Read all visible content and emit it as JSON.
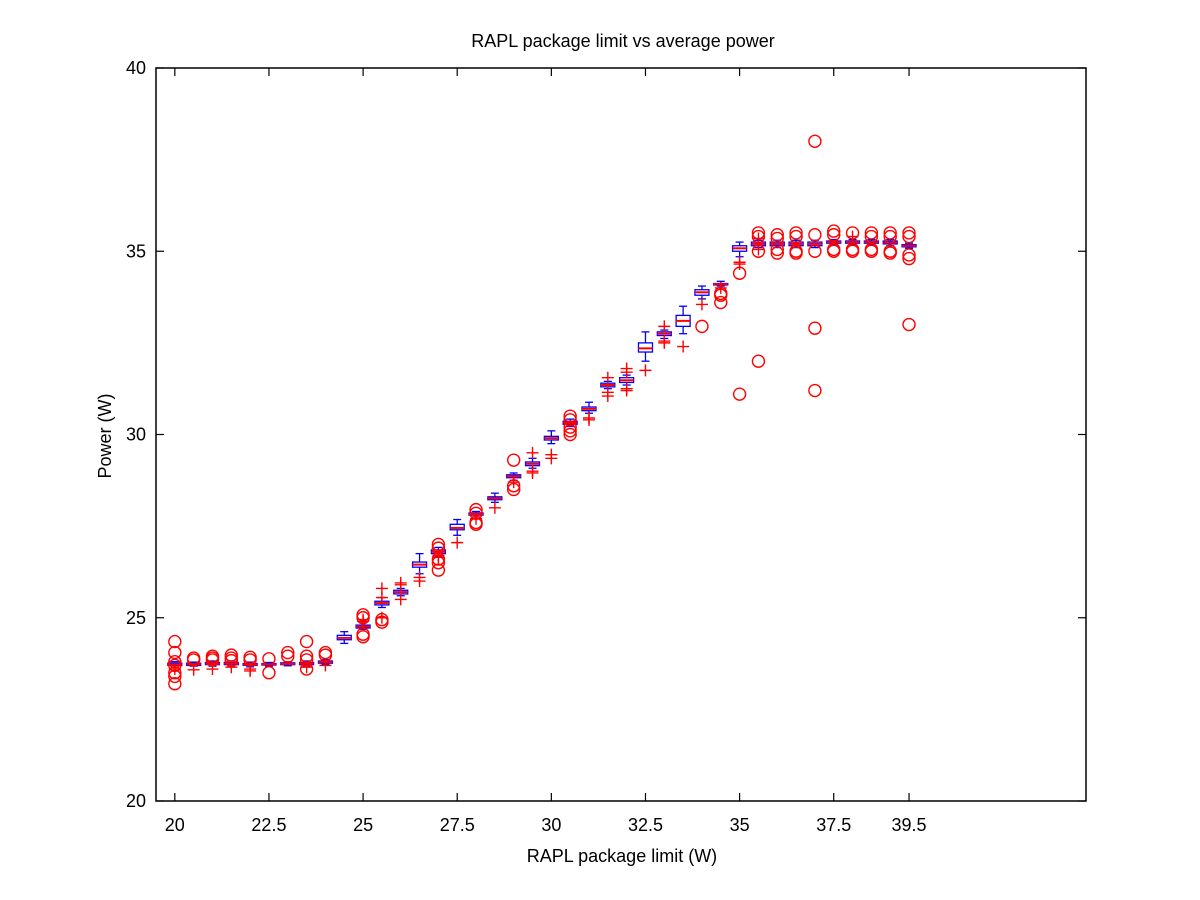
{
  "chart_data": {
    "type": "box",
    "title": "RAPL package limit vs average power",
    "xlabel": "RAPL package limit (W)",
    "ylabel": "Power (W)",
    "xlim": [
      19.5,
      44.2
    ],
    "ylim": [
      20,
      40
    ],
    "xticks": [
      20,
      22.5,
      25,
      27.5,
      30,
      32.5,
      35,
      37.5,
      39.5
    ],
    "xtick_labels": [
      "20",
      "22.5",
      "25",
      "27.5",
      "30",
      "32.5",
      "35",
      "37.5",
      "39.5"
    ],
    "yticks": [
      20,
      25,
      30,
      35,
      40
    ],
    "ytick_labels": [
      "20",
      "25",
      "30",
      "35",
      "40"
    ],
    "grid": false,
    "colors": {
      "box": "#0000ff",
      "outlier": "#ff0000",
      "axis": "#000000"
    },
    "boxes": [
      {
        "x": 20.0,
        "q1": 23.7,
        "median": 23.72,
        "q3": 23.76,
        "wlo": 23.65,
        "whi": 23.8,
        "plus": [
          23.6
        ],
        "circles": [
          24.35,
          24.05,
          23.8,
          23.7,
          23.5,
          23.4,
          23.2
        ]
      },
      {
        "x": 20.5,
        "q1": 23.7,
        "median": 23.73,
        "q3": 23.76,
        "wlo": 23.68,
        "whi": 23.79,
        "plus": [
          23.58
        ],
        "circles": [
          23.9,
          23.85
        ]
      },
      {
        "x": 21.0,
        "q1": 23.72,
        "median": 23.74,
        "q3": 23.78,
        "wlo": 23.68,
        "whi": 23.82,
        "plus": [
          23.6
        ],
        "circles": [
          23.95,
          23.9,
          23.85
        ]
      },
      {
        "x": 21.5,
        "q1": 23.72,
        "median": 23.75,
        "q3": 23.78,
        "wlo": 23.68,
        "whi": 23.82,
        "plus": [
          23.65
        ],
        "circles": [
          23.98,
          23.9,
          23.83
        ]
      },
      {
        "x": 22.0,
        "q1": 23.7,
        "median": 23.72,
        "q3": 23.75,
        "wlo": 23.66,
        "whi": 23.79,
        "plus": [
          23.6,
          23.55
        ],
        "circles": [
          23.92,
          23.85
        ]
      },
      {
        "x": 22.5,
        "q1": 23.71,
        "median": 23.73,
        "q3": 23.75,
        "wlo": 23.68,
        "whi": 23.78,
        "plus": [],
        "circles": [
          23.88,
          23.5
        ]
      },
      {
        "x": 23.0,
        "q1": 23.72,
        "median": 23.74,
        "q3": 23.77,
        "wlo": 23.69,
        "whi": 23.8,
        "plus": [],
        "circles": [
          24.05,
          23.95
        ]
      },
      {
        "x": 23.5,
        "q1": 23.72,
        "median": 23.75,
        "q3": 23.78,
        "wlo": 23.68,
        "whi": 23.82,
        "plus": [
          23.65
        ],
        "circles": [
          24.35,
          23.95,
          23.85,
          23.6
        ]
      },
      {
        "x": 24.0,
        "q1": 23.76,
        "median": 23.79,
        "q3": 23.82,
        "wlo": 23.73,
        "whi": 23.86,
        "plus": [
          23.7
        ],
        "circles": [
          24.05,
          23.98
        ]
      },
      {
        "x": 24.5,
        "q1": 24.4,
        "median": 24.45,
        "q3": 24.52,
        "wlo": 24.3,
        "whi": 24.62,
        "plus": [],
        "circles": []
      },
      {
        "x": 25.0,
        "q1": 24.72,
        "median": 24.76,
        "q3": 24.8,
        "wlo": 24.68,
        "whi": 24.86,
        "plus": [
          24.95,
          24.9
        ],
        "circles": [
          25.08,
          25.0,
          24.55,
          24.48
        ]
      },
      {
        "x": 25.5,
        "q1": 25.35,
        "median": 25.4,
        "q3": 25.45,
        "wlo": 25.28,
        "whi": 25.55,
        "plus": [
          25.8,
          25.55,
          25.0
        ],
        "circles": [
          24.95,
          24.88
        ]
      },
      {
        "x": 26.0,
        "q1": 25.65,
        "median": 25.7,
        "q3": 25.75,
        "wlo": 25.6,
        "whi": 25.8,
        "plus": [
          25.95,
          25.9,
          25.5
        ],
        "circles": []
      },
      {
        "x": 26.5,
        "q1": 26.38,
        "median": 26.45,
        "q3": 26.52,
        "wlo": 26.2,
        "whi": 26.75,
        "plus": [
          26.1,
          26.0
        ],
        "circles": []
      },
      {
        "x": 27.0,
        "q1": 26.75,
        "median": 26.8,
        "q3": 26.85,
        "wlo": 26.68,
        "whi": 26.92,
        "plus": [
          26.7,
          26.65
        ],
        "circles": [
          27.0,
          26.9,
          26.6,
          26.5,
          26.3
        ]
      },
      {
        "x": 27.5,
        "q1": 27.4,
        "median": 27.45,
        "q3": 27.55,
        "wlo": 27.25,
        "whi": 27.68,
        "plus": [
          27.05
        ],
        "circles": []
      },
      {
        "x": 28.0,
        "q1": 27.8,
        "median": 27.83,
        "q3": 27.86,
        "wlo": 27.75,
        "whi": 27.9,
        "plus": [
          27.7
        ],
        "circles": [
          27.95,
          27.85,
          27.6,
          27.55
        ]
      },
      {
        "x": 28.5,
        "q1": 28.22,
        "median": 28.26,
        "q3": 28.3,
        "wlo": 28.15,
        "whi": 28.4,
        "plus": [
          28.0
        ],
        "circles": []
      },
      {
        "x": 29.0,
        "q1": 28.82,
        "median": 28.86,
        "q3": 28.9,
        "wlo": 28.75,
        "whi": 28.95,
        "plus": [
          28.7
        ],
        "circles": [
          29.3,
          28.6,
          28.5
        ]
      },
      {
        "x": 29.5,
        "q1": 29.15,
        "median": 29.2,
        "q3": 29.25,
        "wlo": 29.08,
        "whi": 29.35,
        "plus": [
          29.5,
          29.0,
          28.95
        ],
        "circles": []
      },
      {
        "x": 30.0,
        "q1": 29.85,
        "median": 29.9,
        "q3": 29.95,
        "wlo": 29.75,
        "whi": 30.1,
        "plus": [
          29.45,
          29.35
        ],
        "circles": []
      },
      {
        "x": 30.5,
        "q1": 30.28,
        "median": 30.32,
        "q3": 30.36,
        "wlo": 30.22,
        "whi": 30.42,
        "plus": [],
        "circles": [
          30.5,
          30.4,
          30.2,
          30.1,
          30.0
        ]
      },
      {
        "x": 31.0,
        "q1": 30.65,
        "median": 30.7,
        "q3": 30.75,
        "wlo": 30.58,
        "whi": 30.88,
        "plus": [
          30.45,
          30.4
        ],
        "circles": []
      },
      {
        "x": 31.5,
        "q1": 31.3,
        "median": 31.35,
        "q3": 31.4,
        "wlo": 31.25,
        "whi": 31.45,
        "plus": [
          31.55,
          31.15,
          31.05
        ],
        "circles": []
      },
      {
        "x": 32.0,
        "q1": 31.42,
        "median": 31.48,
        "q3": 31.55,
        "wlo": 31.35,
        "whi": 31.62,
        "plus": [
          31.8,
          31.7,
          31.25,
          31.2
        ],
        "circles": []
      },
      {
        "x": 32.5,
        "q1": 32.25,
        "median": 32.35,
        "q3": 32.5,
        "wlo": 32.0,
        "whi": 32.8,
        "plus": [
          31.75
        ],
        "circles": []
      },
      {
        "x": 33.0,
        "q1": 32.7,
        "median": 32.75,
        "q3": 32.8,
        "wlo": 32.62,
        "whi": 32.85,
        "plus": [
          32.95,
          32.55,
          32.5
        ],
        "circles": []
      },
      {
        "x": 33.5,
        "q1": 32.95,
        "median": 33.1,
        "q3": 33.25,
        "wlo": 32.75,
        "whi": 33.5,
        "plus": [
          32.4
        ],
        "circles": []
      },
      {
        "x": 34.0,
        "q1": 33.8,
        "median": 33.88,
        "q3": 33.95,
        "wlo": 33.7,
        "whi": 34.05,
        "plus": [
          33.55
        ],
        "circles": [
          32.95
        ]
      },
      {
        "x": 34.5,
        "q1": 34.08,
        "median": 34.1,
        "q3": 34.12,
        "wlo": 34.05,
        "whi": 34.18,
        "plus": [
          34.0
        ],
        "circles": [
          33.85,
          33.8,
          33.6
        ]
      },
      {
        "x": 35.0,
        "q1": 35.0,
        "median": 35.08,
        "q3": 35.15,
        "wlo": 34.85,
        "whi": 35.25,
        "plus": [
          34.7,
          34.65
        ],
        "circles": [
          34.4,
          31.1
        ]
      },
      {
        "x": 35.5,
        "q1": 35.15,
        "median": 35.2,
        "q3": 35.25,
        "wlo": 35.1,
        "whi": 35.3,
        "plus": [
          35.35,
          35.05
        ],
        "circles": [
          35.5,
          35.4,
          35.0,
          32.0
        ]
      },
      {
        "x": 36.0,
        "q1": 35.15,
        "median": 35.2,
        "q3": 35.25,
        "wlo": 35.1,
        "whi": 35.3,
        "plus": [],
        "circles": [
          35.45,
          35.35,
          35.05,
          34.95
        ]
      },
      {
        "x": 36.5,
        "q1": 35.15,
        "median": 35.2,
        "q3": 35.25,
        "wlo": 35.1,
        "whi": 35.3,
        "plus": [],
        "circles": [
          35.5,
          35.4,
          35.0,
          34.95
        ]
      },
      {
        "x": 37.0,
        "q1": 35.15,
        "median": 35.2,
        "q3": 35.25,
        "wlo": 35.1,
        "whi": 35.3,
        "plus": [],
        "circles": [
          38.0,
          35.45,
          35.0,
          32.9,
          31.2
        ]
      },
      {
        "x": 37.5,
        "q1": 35.22,
        "median": 35.25,
        "q3": 35.28,
        "wlo": 35.18,
        "whi": 35.32,
        "plus": [],
        "circles": [
          35.55,
          35.45,
          35.05,
          35.0
        ]
      },
      {
        "x": 38.0,
        "q1": 35.22,
        "median": 35.25,
        "q3": 35.28,
        "wlo": 35.18,
        "whi": 35.32,
        "plus": [
          35.4
        ],
        "circles": [
          35.5,
          35.05,
          35.0
        ]
      },
      {
        "x": 38.5,
        "q1": 35.22,
        "median": 35.25,
        "q3": 35.28,
        "wlo": 35.18,
        "whi": 35.32,
        "plus": [],
        "circles": [
          35.5,
          35.4,
          35.05,
          35.0
        ]
      },
      {
        "x": 39.0,
        "q1": 35.2,
        "median": 35.24,
        "q3": 35.28,
        "wlo": 35.15,
        "whi": 35.32,
        "plus": [],
        "circles": [
          35.5,
          35.4,
          35.0,
          34.95
        ]
      },
      {
        "x": 39.5,
        "q1": 35.12,
        "median": 35.15,
        "q3": 35.18,
        "wlo": 35.08,
        "whi": 35.22,
        "plus": [],
        "circles": [
          35.5,
          35.4,
          34.9,
          34.8,
          33.0
        ]
      }
    ]
  }
}
